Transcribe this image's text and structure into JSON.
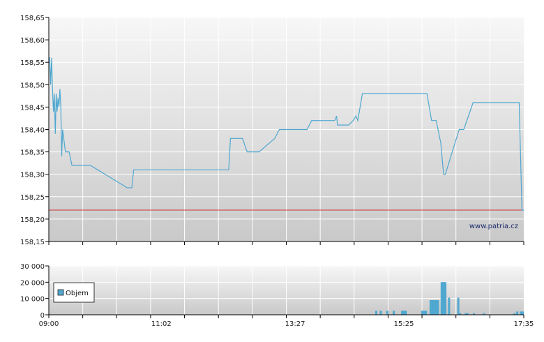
{
  "chart_data": [
    {
      "type": "line",
      "title": "",
      "xlabel": "",
      "ylabel": "",
      "ylim": [
        158.15,
        158.65
      ],
      "y_ticks": [
        "158,15",
        "158,20",
        "158,25",
        "158,30",
        "158,35",
        "158,40",
        "158,45",
        "158,50",
        "158,55",
        "158,60",
        "158,65"
      ],
      "grid": true,
      "line_color": "#4fa8d0",
      "reference_line": {
        "value": 158.22,
        "color": "#cc3333"
      },
      "credit": "www.patria.cz",
      "series": [
        {
          "x": [
            "09:00",
            "09:01",
            "09:02",
            "09:03",
            "09:04",
            "09:05",
            "09:06",
            "09:07",
            "09:08",
            "09:09",
            "09:10",
            "09:11",
            "09:12",
            "09:13",
            "09:14",
            "09:15",
            "09:18",
            "09:20",
            "09:22",
            "09:25",
            "09:28",
            "09:32",
            "09:35",
            "09:45",
            "10:25",
            "10:30",
            "10:32",
            "10:35",
            "12:15",
            "12:17",
            "12:30",
            "12:35",
            "12:48",
            "13:05",
            "13:10",
            "13:40",
            "13:45",
            "13:50",
            "14:10",
            "14:12",
            "14:13",
            "14:25",
            "14:30",
            "14:33",
            "14:35",
            "14:40",
            "15:50",
            "15:55",
            "16:00",
            "16:05",
            "16:08",
            "16:10",
            "16:25",
            "16:30",
            "16:40",
            "17:30",
            "17:33",
            "17:35"
          ],
          "values": [
            158.56,
            158.56,
            158.5,
            158.56,
            158.49,
            158.44,
            158.48,
            158.39,
            158.48,
            158.44,
            158.47,
            158.45,
            158.49,
            158.45,
            158.34,
            158.4,
            158.35,
            158.35,
            158.35,
            158.32,
            158.32,
            158.32,
            158.32,
            158.32,
            158.27,
            158.27,
            158.31,
            158.31,
            158.31,
            158.38,
            158.38,
            158.35,
            158.35,
            158.38,
            158.4,
            158.4,
            158.42,
            158.42,
            158.42,
            158.43,
            158.41,
            158.41,
            158.42,
            158.43,
            158.42,
            158.48,
            158.48,
            158.42,
            158.42,
            158.37,
            158.3,
            158.3,
            158.4,
            158.4,
            158.46,
            158.46,
            158.22,
            158.22
          ]
        }
      ]
    },
    {
      "type": "bar",
      "title": "",
      "xlabel": "",
      "ylabel": "",
      "ylim": [
        0,
        30000
      ],
      "y_ticks": [
        "0",
        "10 000",
        "20 000",
        "30 000"
      ],
      "x_ticks": [
        "09:00",
        "11:02",
        "13:27",
        "15:25",
        "17:35"
      ],
      "grid": true,
      "bar_color": "#4fa8d0",
      "legend": {
        "position": "left",
        "entries": [
          "Objem"
        ]
      },
      "series": [
        {
          "name": "Objem",
          "x": [
            "14:55",
            "15:00",
            "15:07",
            "15:14",
            "15:23",
            "15:25",
            "15:26",
            "15:27",
            "15:45",
            "15:47",
            "15:49",
            "15:54",
            "15:56",
            "15:58",
            "16:00",
            "16:02",
            "16:06",
            "16:07",
            "16:08",
            "16:09",
            "16:10",
            "16:14",
            "16:24",
            "16:26",
            "16:32",
            "16:34",
            "16:41",
            "16:52",
            "17:25",
            "17:28",
            "17:32",
            "17:34"
          ],
          "values": [
            2500,
            2500,
            2500,
            2500,
            2500,
            2500,
            2500,
            2500,
            2500,
            2500,
            2500,
            9000,
            9000,
            9000,
            9000,
            9000,
            20000,
            20000,
            20000,
            20000,
            20000,
            10500,
            10500,
            1000,
            1000,
            1000,
            1000,
            1000,
            1000,
            2000,
            2000,
            2000
          ]
        }
      ]
    }
  ]
}
